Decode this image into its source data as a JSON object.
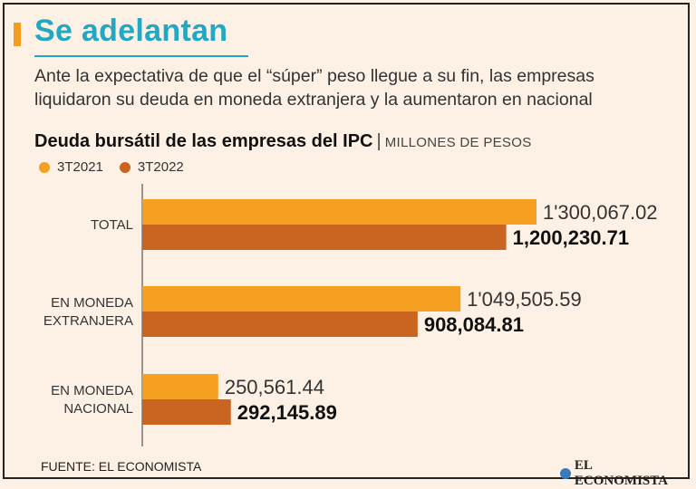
{
  "header": {
    "title": "Se adelantan",
    "subtitle": "Ante la expectativa de que el “súper” peso llegue a su fin, las empresas liquidaron su deuda en moneda extranjera y la aumentaron en nacional"
  },
  "chart_heading": {
    "main": "Deuda bursátil de las empresas del IPC",
    "separator": "|",
    "unit": "MILLONES DE PESOS"
  },
  "legend": [
    {
      "label": "3T2021",
      "color": "#f6a021"
    },
    {
      "label": "3T2022",
      "color": "#c96520"
    }
  ],
  "chart_data": {
    "type": "bar",
    "orientation": "horizontal",
    "categories": [
      [
        "TOTAL"
      ],
      [
        "EN MONEDA",
        "EXTRANJERA"
      ],
      [
        "EN MONEDA",
        "NACIONAL"
      ]
    ],
    "series": [
      {
        "name": "3T2021",
        "color": "#f6a021",
        "values": [
          1300067.02,
          1049505.59,
          250561.44
        ],
        "labels": [
          "1'300,067.02",
          "1'049,505.59",
          "250,561.44"
        ]
      },
      {
        "name": "3T2022",
        "color": "#c96520",
        "values": [
          1200230.71,
          908084.81,
          292145.89
        ],
        "labels": [
          "1,200,230.71",
          "908,084.81",
          "292,145.89"
        ]
      }
    ],
    "xlim": [
      0,
      1300067.02
    ],
    "grid": false
  },
  "footer": {
    "source": "FUENTE: EL ECONOMISTA",
    "logo_text": "EL ECONOMISTA",
    "logo_color": "#3a7bbf"
  }
}
